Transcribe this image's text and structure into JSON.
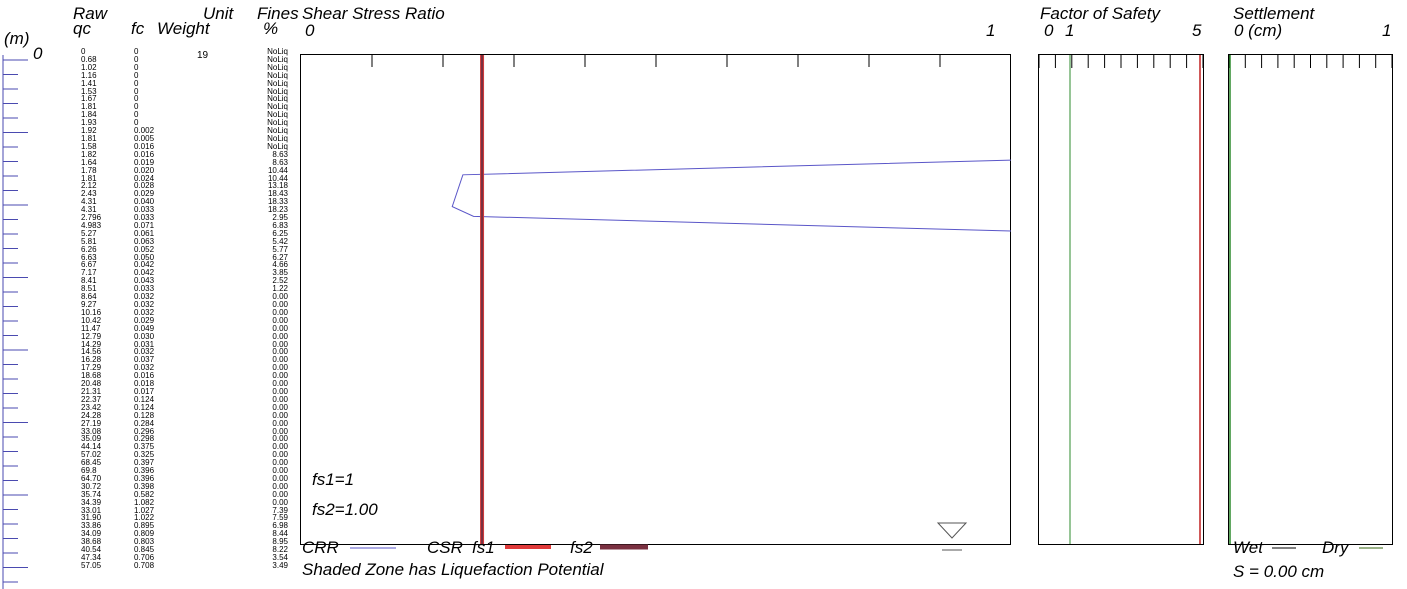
{
  "headers": {
    "depth_unit": "(m)",
    "depth_zero": "0",
    "raw": "Raw",
    "qc": "qc",
    "fc": "fc",
    "unit": "Unit",
    "weight": "Weight",
    "fines": "Fines",
    "percent": "%"
  },
  "unit_weight_value": "19",
  "columns": {
    "qc": [
      "0",
      "0.68",
      "1.02",
      "1.16",
      "1.41",
      "1.53",
      "1.67",
      "1.81",
      "1.84",
      "1.93",
      "1.92",
      "1.81",
      "1.58",
      "1.82",
      "1.64",
      "1.78",
      "1.81",
      "2.12",
      "2.43",
      "4.31",
      "4.31",
      "2.796",
      "4.983",
      "5.27",
      "5.81",
      "6.26",
      "6.63",
      "6.67",
      "7.17",
      "8.41",
      "8.51",
      "8.64",
      "9.27",
      "10.16",
      "10.42",
      "11.47",
      "12.79",
      "14.29",
      "14.56",
      "16.28",
      "17.29",
      "18.68",
      "20.48",
      "21.31",
      "22.37",
      "23.42",
      "24.28",
      "27.19",
      "33.08",
      "35.09",
      "44.14",
      "57.02",
      "68.45",
      "69.8",
      "64.70",
      "30.72",
      "35.74",
      "34.39",
      "33.01",
      "31.90",
      "33.86",
      "34.09",
      "38.68",
      "40.54",
      "47.34",
      "57.05"
    ],
    "fc": [
      "0",
      "0",
      "0",
      "0",
      "0",
      "0",
      "0",
      "0",
      "0",
      "0",
      "0.002",
      "0.005",
      "0.016",
      "0.016",
      "0.019",
      "0.020",
      "0.024",
      "0.028",
      "0.029",
      "0.040",
      "0.033",
      "0.033",
      "0.071",
      "0.061",
      "0.063",
      "0.052",
      "0.050",
      "0.042",
      "0.042",
      "0.043",
      "0.033",
      "0.032",
      "0.032",
      "0.032",
      "0.029",
      "0.049",
      "0.030",
      "0.031",
      "0.032",
      "0.037",
      "0.032",
      "0.016",
      "0.018",
      "0.017",
      "0.124",
      "0.124",
      "0.128",
      "0.284",
      "0.296",
      "0.298",
      "0.375",
      "0.325",
      "0.397",
      "0.396",
      "0.396",
      "0.398",
      "0.582",
      "1.082",
      "1.027",
      "1.022",
      "0.895",
      "0.809",
      "0.803",
      "0.845",
      "0.706",
      "0.708"
    ],
    "fines": [
      "NoLiq",
      "NoLiq",
      "NoLiq",
      "NoLiq",
      "NoLiq",
      "NoLiq",
      "NoLiq",
      "NoLiq",
      "NoLiq",
      "NoLiq",
      "NoLiq",
      "NoLiq",
      "NoLiq",
      "8.63",
      "8.63",
      "10.44",
      "10.44",
      "13.18",
      "18.43",
      "18.33",
      "18.23",
      "2.95",
      "6.83",
      "6.25",
      "5.42",
      "5.77",
      "6.27",
      "4.66",
      "3.85",
      "2.52",
      "1.22",
      "0.00",
      "0.00",
      "0.00",
      "0.00",
      "0.00",
      "0.00",
      "0.00",
      "0.00",
      "0.00",
      "0.00",
      "0.00",
      "0.00",
      "0.00",
      "0.00",
      "0.00",
      "0.00",
      "0.00",
      "0.00",
      "0.00",
      "0.00",
      "0.00",
      "0.00",
      "0.00",
      "0.00",
      "0.00",
      "0.00",
      "0.00",
      "7.39",
      "7.59",
      "6.98",
      "8.44",
      "8.95",
      "8.22",
      "3.54",
      "3.49"
    ]
  },
  "shear_panel": {
    "title": "Shear Stress Ratio",
    "tick_left": "0",
    "tick_right": "1",
    "fs1_label": "fs1=1",
    "fs2_label": "fs2=1.00"
  },
  "legend": {
    "crr": "CRR",
    "csr": "CSR",
    "fs1": "fs1",
    "fs2": "fs2",
    "note": "Shaded Zone has Liquefaction Potential"
  },
  "fos_panel": {
    "title": "Factor of Safety",
    "tick0": "0",
    "tick1": "1",
    "tick5": "5"
  },
  "settlement_panel": {
    "title": "Settlement",
    "tick0": "0 (cm)",
    "tick1": "1",
    "wet": "Wet",
    "dry": "Dry",
    "total": "S = 0.00 cm"
  },
  "colors": {
    "crr": "#5a56c8",
    "csr": "#d23a3a",
    "fs1": "#e03a3a",
    "fs2": "#7a3040",
    "fos_green": "#2e8b2e",
    "fos_red": "#c02020",
    "dry": "#7a9a60",
    "depth_axis": "#4a4ab0"
  },
  "chart_data": [
    {
      "type": "line",
      "title": "Shear Stress Ratio",
      "xlim": [
        0,
        1
      ],
      "series": [
        {
          "name": "CRR",
          "x": [
            1.0,
            0.228,
            0.213,
            0.243,
            1.0
          ],
          "y": [
            0.215,
            0.245,
            0.31,
            0.33,
            0.36
          ]
        },
        {
          "name": "CSR",
          "x": [
            0.255,
            0.255
          ],
          "y": [
            0,
            1
          ]
        },
        {
          "name": "fs1",
          "x": [
            1,
            1
          ],
          "y": [
            0,
            1
          ]
        },
        {
          "name": "fs2",
          "x": [
            1.0,
            1.0
          ],
          "y": [
            0,
            1
          ]
        }
      ],
      "annotations": [
        "fs1=1",
        "fs2=1.00"
      ]
    },
    {
      "type": "line",
      "title": "Factor of Safety",
      "xlim": [
        0,
        5
      ],
      "series": [
        {
          "name": "FS",
          "x": [
            1,
            1
          ],
          "y": [
            0,
            1
          ]
        }
      ]
    },
    {
      "type": "line",
      "title": "Settlement",
      "xlabel": "(cm)",
      "xlim": [
        0,
        1
      ],
      "series": [
        {
          "name": "Wet",
          "x": [
            0,
            0
          ],
          "y": [
            0,
            1
          ]
        },
        {
          "name": "Dry",
          "x": [
            0,
            0
          ],
          "y": [
            0,
            1
          ]
        }
      ],
      "annotations": [
        "S = 0.00 cm"
      ]
    }
  ]
}
